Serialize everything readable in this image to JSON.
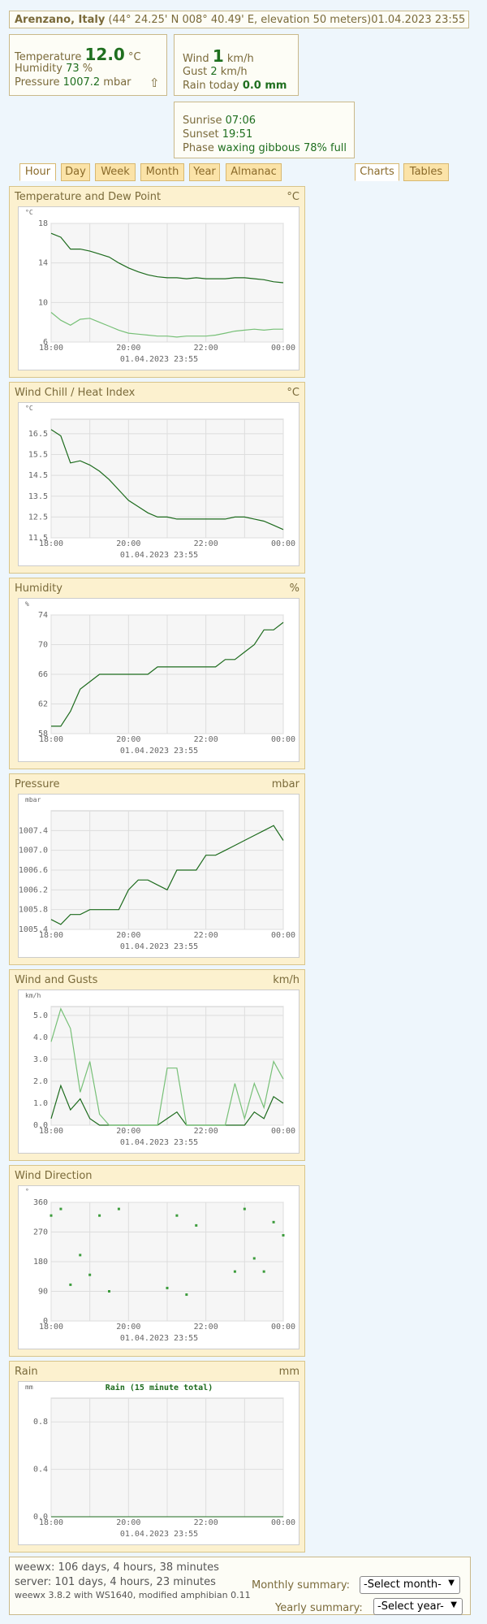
{
  "header": {
    "station": "Arenzano, Italy",
    "location": "(44° 24.25' N 008° 40.49' E, elevation 50 meters)",
    "time": "01.04.2023 23:55"
  },
  "current": {
    "temp_label": "Temperature",
    "temp": "12.0",
    "temp_unit": "°C",
    "hum_label": "Humidity",
    "hum": "73",
    "hum_unit": "%",
    "pres_label": "Pressure",
    "pres": "1007.2",
    "pres_unit": "mbar",
    "trend": "⇧",
    "wind_label": "Wind",
    "wind": "1",
    "wind_unit": "km/h",
    "gust_label": "Gust",
    "gust": "2",
    "gust_unit": "km/h",
    "rain_label": "Rain today",
    "rain": "0.0 mm"
  },
  "almanac": {
    "sunrise_label": "Sunrise",
    "sunrise": "07:06",
    "sunset_label": "Sunset",
    "sunset": "19:51",
    "phase_label": "Phase",
    "phase": "waxing gibbous 78% full"
  },
  "tabs": [
    "Hour",
    "Day",
    "Week",
    "Month",
    "Year",
    "Almanac",
    "Charts",
    "Tables"
  ],
  "chart_data": [
    {
      "type": "line",
      "title": "Temperature and Dew Point",
      "unit": "°C",
      "y_unit": "°C",
      "date": "01.04.2023 23:55",
      "categories": [
        "18:00",
        null,
        null,
        null,
        null,
        null,
        null,
        null,
        "20:00",
        null,
        null,
        null,
        null,
        null,
        null,
        null,
        "22:00",
        null,
        null,
        null,
        null,
        null,
        null,
        null,
        "00:00"
      ],
      "ylim": [
        6,
        18
      ],
      "yticks": [
        6,
        10,
        14,
        18
      ],
      "grid": true,
      "series": [
        {
          "color": "#1d6b1d",
          "values": [
            17.0,
            16.6,
            15.4,
            15.4,
            15.2,
            14.9,
            14.6,
            14.0,
            13.5,
            13.1,
            12.8,
            12.6,
            12.5,
            12.5,
            12.4,
            12.5,
            12.4,
            12.4,
            12.4,
            12.5,
            12.5,
            12.4,
            12.3,
            12.1,
            12.0
          ]
        },
        {
          "color": "#77c077",
          "values": [
            9.0,
            8.2,
            7.7,
            8.3,
            8.4,
            8.0,
            7.6,
            7.2,
            6.9,
            6.8,
            6.7,
            6.6,
            6.6,
            6.5,
            6.6,
            6.6,
            6.6,
            6.7,
            6.9,
            7.1,
            7.2,
            7.3,
            7.2,
            7.3,
            7.3
          ]
        }
      ]
    },
    {
      "type": "line",
      "title": "Wind Chill / Heat Index",
      "unit": "°C",
      "y_unit": "°C",
      "date": "01.04.2023 23:55",
      "categories": [
        "18:00",
        null,
        null,
        null,
        null,
        null,
        null,
        null,
        "20:00",
        null,
        null,
        null,
        null,
        null,
        null,
        null,
        "22:00",
        null,
        null,
        null,
        null,
        null,
        null,
        null,
        "00:00"
      ],
      "ylim": [
        11.5,
        17.2
      ],
      "yticks": [
        11.5,
        12.5,
        13.5,
        14.5,
        15.5,
        16.5
      ],
      "grid": true,
      "series": [
        {
          "color": "#1d6b1d",
          "values": [
            16.7,
            16.4,
            15.1,
            15.2,
            15.0,
            14.7,
            14.3,
            13.8,
            13.3,
            13.0,
            12.7,
            12.5,
            12.5,
            12.4,
            12.4,
            12.4,
            12.4,
            12.4,
            12.4,
            12.5,
            12.5,
            12.4,
            12.3,
            12.1,
            11.9
          ]
        }
      ]
    },
    {
      "type": "line",
      "title": "Humidity",
      "unit": "%",
      "y_unit": "%",
      "date": "01.04.2023 23:55",
      "categories": [
        "18:00",
        null,
        null,
        null,
        null,
        null,
        null,
        null,
        "20:00",
        null,
        null,
        null,
        null,
        null,
        null,
        null,
        "22:00",
        null,
        null,
        null,
        null,
        null,
        null,
        null,
        "00:00"
      ],
      "ylim": [
        58,
        74
      ],
      "yticks": [
        58,
        62,
        66,
        70,
        74
      ],
      "grid": true,
      "series": [
        {
          "color": "#1d6b1d",
          "values": [
            59,
            59,
            61,
            64,
            65,
            66,
            66,
            66,
            66,
            66,
            66,
            67,
            67,
            67,
            67,
            67,
            67,
            67,
            68,
            68,
            69,
            70,
            72,
            72,
            73
          ]
        }
      ]
    },
    {
      "type": "line",
      "title": "Pressure",
      "unit": "mbar",
      "y_unit": "mbar",
      "date": "01.04.2023 23:55",
      "categories": [
        "18:00",
        null,
        null,
        null,
        null,
        null,
        null,
        null,
        "20:00",
        null,
        null,
        null,
        null,
        null,
        null,
        null,
        "22:00",
        null,
        null,
        null,
        null,
        null,
        null,
        null,
        "00:00"
      ],
      "ylim": [
        1005.4,
        1007.8
      ],
      "yticks": [
        1005.4,
        1005.8,
        1006.2,
        1006.6,
        {
          "value": 1007,
          "label": "1007.0"
        },
        1007.4
      ],
      "grid": true,
      "series": [
        {
          "color": "#1d6b1d",
          "values": [
            1005.6,
            1005.5,
            1005.7,
            1005.7,
            1005.8,
            1005.8,
            1005.8,
            1005.8,
            1006.2,
            1006.4,
            1006.4,
            1006.3,
            1006.2,
            1006.6,
            1006.6,
            1006.6,
            1006.9,
            1006.9,
            1007.0,
            1007.1,
            1007.2,
            1007.3,
            1007.4,
            1007.5,
            1007.2
          ]
        }
      ]
    },
    {
      "type": "line",
      "title": "Wind and Gusts",
      "unit": "km/h",
      "y_unit": "km/h",
      "date": "01.04.2023 23:55",
      "categories": [
        "18:00",
        null,
        null,
        null,
        null,
        null,
        null,
        null,
        "20:00",
        null,
        null,
        null,
        null,
        null,
        null,
        null,
        "22:00",
        null,
        null,
        null,
        null,
        null,
        null,
        null,
        "00:00"
      ],
      "ylim": [
        0,
        5.4
      ],
      "yticks": [
        {
          "value": 0,
          "label": "0.0"
        },
        {
          "value": 1,
          "label": "1.0"
        },
        {
          "value": 2,
          "label": "2.0"
        },
        {
          "value": 3,
          "label": "3.0"
        },
        {
          "value": 4,
          "label": "4.0"
        },
        {
          "value": 5,
          "label": "5.0"
        }
      ],
      "grid": true,
      "series": [
        {
          "color": "#1d6b1d",
          "values": [
            0.3,
            1.8,
            0.7,
            1.2,
            0.3,
            0,
            0,
            0,
            0,
            0,
            0,
            0,
            0.3,
            0.6,
            0,
            0,
            0,
            0,
            0,
            0,
            0,
            0.6,
            0.3,
            1.3,
            1.0
          ]
        },
        {
          "color": "#77c077",
          "values": [
            3.8,
            5.3,
            4.4,
            1.5,
            2.9,
            0.5,
            0,
            0,
            0,
            0,
            0,
            0,
            2.6,
            2.6,
            0,
            0,
            0,
            0,
            0,
            1.9,
            0.3,
            1.9,
            0.8,
            2.9,
            2.1
          ]
        }
      ]
    },
    {
      "type": "scatter",
      "title": "Wind Direction",
      "unit": "",
      "y_unit": "°",
      "date": "01.04.2023 23:55",
      "categories": [
        "18:00",
        null,
        null,
        null,
        null,
        null,
        null,
        null,
        "20:00",
        null,
        null,
        null,
        null,
        null,
        null,
        null,
        "22:00",
        null,
        null,
        null,
        null,
        null,
        null,
        null,
        "00:00"
      ],
      "ylim": [
        0,
        360
      ],
      "yticks": [
        0,
        90,
        180,
        270,
        360
      ],
      "grid": true,
      "series": [
        {
          "color": "#3c9c3c",
          "values": [
            320,
            340,
            110,
            200,
            140,
            320,
            90,
            340,
            null,
            null,
            null,
            null,
            100,
            320,
            80,
            290,
            null,
            null,
            null,
            150,
            340,
            190,
            150,
            300,
            260
          ]
        }
      ]
    },
    {
      "type": "bar",
      "title": "Rain",
      "unit": "mm",
      "y_unit": "mm",
      "plot_title": "Rain (15 minute total)",
      "date": "01.04.2023 23:55",
      "categories": [
        "18:00",
        null,
        null,
        null,
        null,
        null,
        null,
        null,
        "20:00",
        null,
        null,
        null,
        null,
        null,
        null,
        null,
        "22:00",
        null,
        null,
        null,
        null,
        null,
        null,
        null,
        "00:00"
      ],
      "ylim": [
        0,
        1.0
      ],
      "yticks": [
        {
          "value": 0,
          "label": "0.0"
        },
        0.4,
        0.8
      ],
      "grid": true,
      "series": [
        {
          "color": "#1d6b1d",
          "values": [
            0,
            0,
            0,
            0,
            0,
            0,
            0,
            0,
            0,
            0,
            0,
            0,
            0,
            0,
            0,
            0,
            0,
            0,
            0,
            0,
            0,
            0,
            0,
            0,
            0
          ]
        }
      ]
    }
  ],
  "footer": {
    "weewx_uptime": "weewx: 106 days, 4 hours, 38 minutes",
    "server_uptime": "server: 101 days, 4 hours, 23 minutes",
    "version": "weewx 3.8.2 with WS1640, modified amphibian 0.11",
    "monthly_label": "Monthly summary:",
    "monthly_select": "-Select month-",
    "yearly_label": "Yearly summary:",
    "yearly_select": "-Select year-"
  }
}
